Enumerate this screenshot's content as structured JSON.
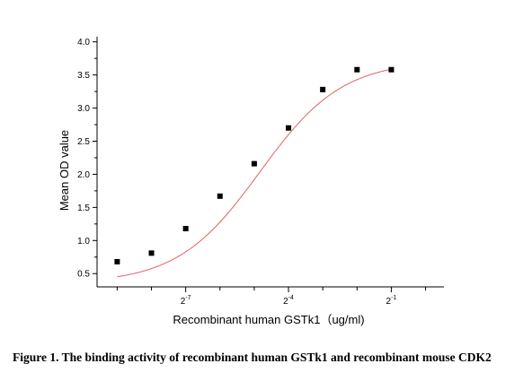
{
  "chart_data": {
    "type": "scatter",
    "xlabel": "Recombinant human GSTk1（ug/ml)",
    "ylabel": "Mean OD value",
    "x_scale": "log2",
    "xlim": [
      0.0013,
      1.45
    ],
    "ylim": [
      0.3,
      4.05
    ],
    "x_ticks": [
      {
        "value": 0.0078125,
        "base": "2",
        "exponent": "-7"
      },
      {
        "value": 0.0625,
        "base": "2",
        "exponent": "-4"
      },
      {
        "value": 0.5,
        "base": "2",
        "exponent": "-1"
      }
    ],
    "y_ticks": [
      {
        "value": 0.5,
        "label": "0.5"
      },
      {
        "value": 1.0,
        "label": "1.0"
      },
      {
        "value": 1.5,
        "label": "1.5"
      },
      {
        "value": 2.0,
        "label": "2.0"
      },
      {
        "value": 2.5,
        "label": "2.5"
      },
      {
        "value": 3.0,
        "label": "3.0"
      },
      {
        "value": 3.5,
        "label": "3.5"
      },
      {
        "value": 4.0,
        "label": "4.0"
      }
    ],
    "points": [
      {
        "x": 0.001953125,
        "y": 0.68
      },
      {
        "x": 0.00390625,
        "y": 0.81
      },
      {
        "x": 0.0078125,
        "y": 1.18
      },
      {
        "x": 0.015625,
        "y": 1.67
      },
      {
        "x": 0.03125,
        "y": 2.16
      },
      {
        "x": 0.0625,
        "y": 2.7
      },
      {
        "x": 0.125,
        "y": 3.28
      },
      {
        "x": 0.25,
        "y": 3.58
      },
      {
        "x": 0.5,
        "y": 3.58
      }
    ],
    "fit_curve": {
      "model": "4PL",
      "bottom": 0.35,
      "top": 3.72,
      "ec50": 0.035,
      "hill": 1.2,
      "color": "#e06060"
    },
    "marker_color": "#000000",
    "grid": false,
    "legend": "none"
  },
  "caption": "Figure 1. The binding activity of recombinant human GSTk1 and recombinant mouse CDK2"
}
